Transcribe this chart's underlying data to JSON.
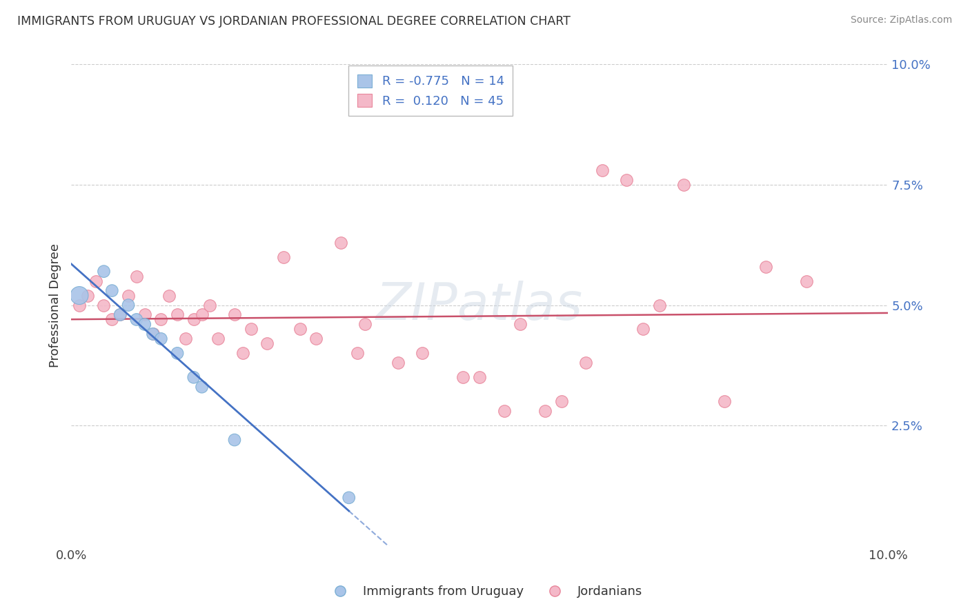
{
  "title": "IMMIGRANTS FROM URUGUAY VS JORDANIAN PROFESSIONAL DEGREE CORRELATION CHART",
  "source": "Source: ZipAtlas.com",
  "ylabel": "Professional Degree",
  "xlim": [
    0.0,
    0.1
  ],
  "ylim": [
    0.0,
    0.1
  ],
  "xtick_labels": [
    "0.0%",
    "10.0%"
  ],
  "ytick_labels": [
    "2.5%",
    "5.0%",
    "7.5%",
    "10.0%"
  ],
  "ytick_values": [
    0.025,
    0.05,
    0.075,
    0.1
  ],
  "grid_color": "#cccccc",
  "background_color": "#ffffff",
  "watermark": "ZIPatlas",
  "blue_series": {
    "name": "Immigrants from Uruguay",
    "line_color": "#4472c4",
    "marker_facecolor": "#a9c4e8",
    "marker_edgecolor": "#7bafd4",
    "R": -0.775,
    "N": 14,
    "x": [
      0.001,
      0.004,
      0.005,
      0.006,
      0.007,
      0.008,
      0.009,
      0.01,
      0.011,
      0.013,
      0.015,
      0.016,
      0.02,
      0.034
    ],
    "y": [
      0.052,
      0.057,
      0.053,
      0.048,
      0.05,
      0.047,
      0.046,
      0.044,
      0.043,
      0.04,
      0.035,
      0.033,
      0.022,
      0.01
    ]
  },
  "pink_series": {
    "name": "Jordanians",
    "line_color": "#c9506a",
    "marker_facecolor": "#f4b8c8",
    "marker_edgecolor": "#e8859a",
    "R": 0.12,
    "N": 45,
    "x": [
      0.001,
      0.002,
      0.003,
      0.004,
      0.005,
      0.006,
      0.007,
      0.008,
      0.009,
      0.01,
      0.011,
      0.012,
      0.013,
      0.014,
      0.015,
      0.016,
      0.017,
      0.018,
      0.02,
      0.021,
      0.022,
      0.024,
      0.026,
      0.028,
      0.03,
      0.033,
      0.035,
      0.036,
      0.04,
      0.043,
      0.048,
      0.05,
      0.053,
      0.055,
      0.058,
      0.06,
      0.063,
      0.065,
      0.068,
      0.07,
      0.072,
      0.075,
      0.08,
      0.085,
      0.09
    ],
    "y": [
      0.05,
      0.052,
      0.055,
      0.05,
      0.047,
      0.048,
      0.052,
      0.056,
      0.048,
      0.044,
      0.047,
      0.052,
      0.048,
      0.043,
      0.047,
      0.048,
      0.05,
      0.043,
      0.048,
      0.04,
      0.045,
      0.042,
      0.06,
      0.045,
      0.043,
      0.063,
      0.04,
      0.046,
      0.038,
      0.04,
      0.035,
      0.035,
      0.028,
      0.046,
      0.028,
      0.03,
      0.038,
      0.078,
      0.076,
      0.045,
      0.05,
      0.075,
      0.03,
      0.058,
      0.055
    ]
  },
  "legend_R_blue": "R = -0.775",
  "legend_N_blue": "N = 14",
  "legend_R_pink": "R =  0.120",
  "legend_N_pink": "N = 45"
}
